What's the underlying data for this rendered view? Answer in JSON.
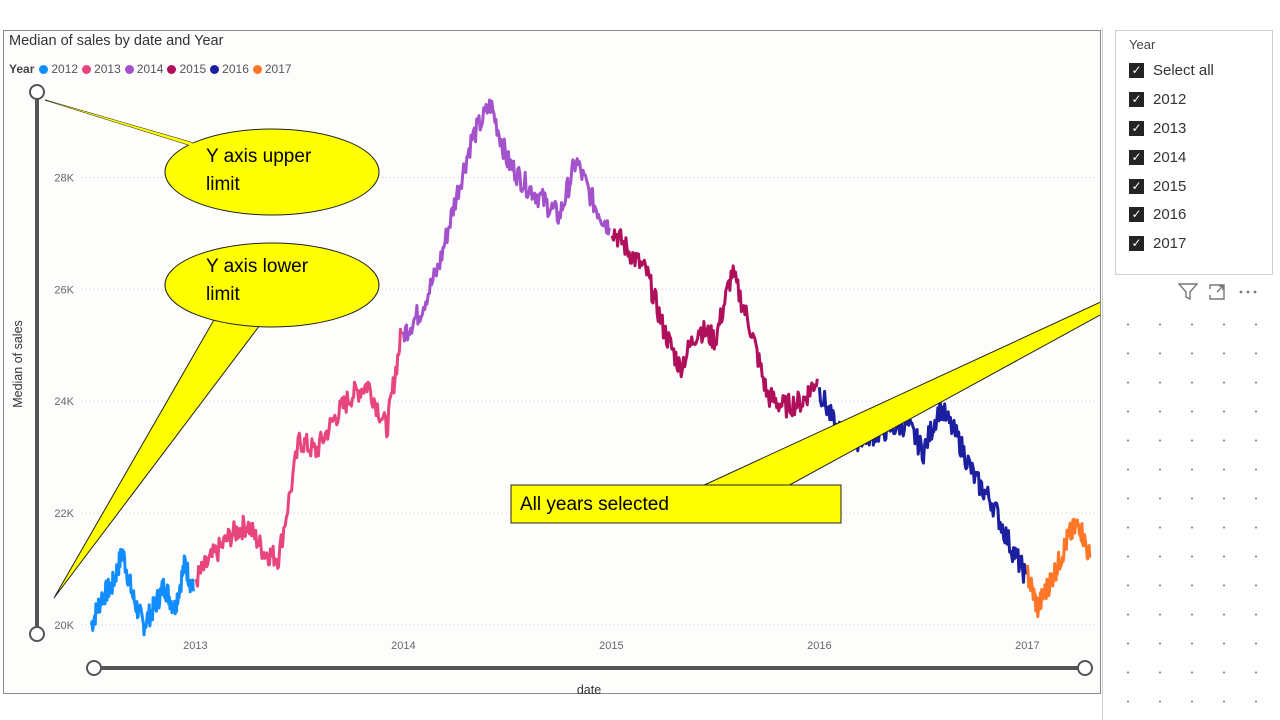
{
  "chart_data": {
    "type": "line",
    "title": "Median of sales by date and Year",
    "legend_title": "Year",
    "legend_position": "top-left",
    "xlabel": "date",
    "ylabel": "Median of sales",
    "x_ticks": [
      "2013",
      "2014",
      "2015",
      "2016",
      "2017"
    ],
    "y_ticks": [
      "20K",
      "22K",
      "24K",
      "26K",
      "28K"
    ],
    "y_tick_values": [
      20000,
      22000,
      24000,
      26000,
      28000
    ],
    "ylim": [
      19800,
      29600
    ],
    "xlim": [
      2012.45,
      2017.33
    ],
    "grid": "horizontal dotted",
    "series": [
      {
        "name": "2012",
        "color": "#118DFF",
        "x": [
          2012.5,
          2012.55,
          2012.6,
          2012.65,
          2012.7,
          2012.75,
          2012.8,
          2012.85,
          2012.9,
          2012.95,
          2012.99
        ],
        "values": [
          20000,
          20500,
          20700,
          21300,
          20500,
          20000,
          20300,
          20700,
          20300,
          21100,
          20600
        ]
      },
      {
        "name": "2013",
        "color": "#E8457C",
        "x": [
          2013.0,
          2013.08,
          2013.17,
          2013.25,
          2013.33,
          2013.4,
          2013.5,
          2013.58,
          2013.67,
          2013.75,
          2013.83,
          2013.92,
          2013.99
        ],
        "values": [
          20800,
          21200,
          21600,
          21800,
          21300,
          21200,
          23300,
          23100,
          23700,
          24100,
          24300,
          23500,
          25200
        ]
      },
      {
        "name": "2014",
        "color": "#A352CC",
        "x": [
          2014.0,
          2014.08,
          2014.17,
          2014.25,
          2014.33,
          2014.42,
          2014.5,
          2014.58,
          2014.67,
          2014.75,
          2014.83,
          2014.92,
          2014.99
        ],
        "values": [
          25200,
          25600,
          26400,
          27600,
          28700,
          29300,
          28300,
          27900,
          27600,
          27300,
          28300,
          27500,
          27100
        ]
      },
      {
        "name": "2015",
        "color": "#B0105B",
        "x": [
          2015.0,
          2015.08,
          2015.17,
          2015.25,
          2015.33,
          2015.42,
          2015.5,
          2015.58,
          2015.67,
          2015.75,
          2015.83,
          2015.92,
          2015.99
        ],
        "values": [
          27100,
          26700,
          26300,
          25300,
          24600,
          25300,
          25100,
          26300,
          25300,
          24100,
          23900,
          24000,
          24400
        ]
      },
      {
        "name": "2016",
        "color": "#1C1FA0",
        "x": [
          2016.0,
          2016.08,
          2016.17,
          2016.25,
          2016.33,
          2016.42,
          2016.5,
          2016.58,
          2016.67,
          2016.75,
          2016.83,
          2016.92,
          2016.99
        ],
        "values": [
          24200,
          23500,
          23300,
          23400,
          23500,
          23600,
          23100,
          23900,
          23300,
          22600,
          22200,
          21400,
          20900
        ]
      },
      {
        "name": "2017",
        "color": "#FE7626",
        "x": [
          2017.0,
          2017.05,
          2017.1,
          2017.15,
          2017.2,
          2017.25,
          2017.3
        ],
        "values": [
          20900,
          20300,
          20700,
          21100,
          21600,
          21800,
          21200
        ]
      }
    ],
    "annotations": [
      {
        "text_line1": "Y axis upper",
        "text_line2": "limit",
        "shape": "ellipse callout",
        "color": "#FFFF00"
      },
      {
        "text_line1": "Y axis lower",
        "text_line2": "limit",
        "shape": "ellipse callout",
        "color": "#FFFF00"
      },
      {
        "text": "All years selected",
        "shape": "rectangle callout",
        "color": "#FFFF00"
      }
    ]
  },
  "slicer": {
    "title": "Year",
    "items": [
      {
        "label": "Select all",
        "checked": true
      },
      {
        "label": "2012",
        "checked": true
      },
      {
        "label": "2013",
        "checked": true
      },
      {
        "label": "2014",
        "checked": true
      },
      {
        "label": "2015",
        "checked": true
      },
      {
        "label": "2016",
        "checked": true
      },
      {
        "label": "2017",
        "checked": true
      }
    ],
    "icons": [
      "filter-icon",
      "focus-mode-icon",
      "more-options-icon"
    ]
  }
}
